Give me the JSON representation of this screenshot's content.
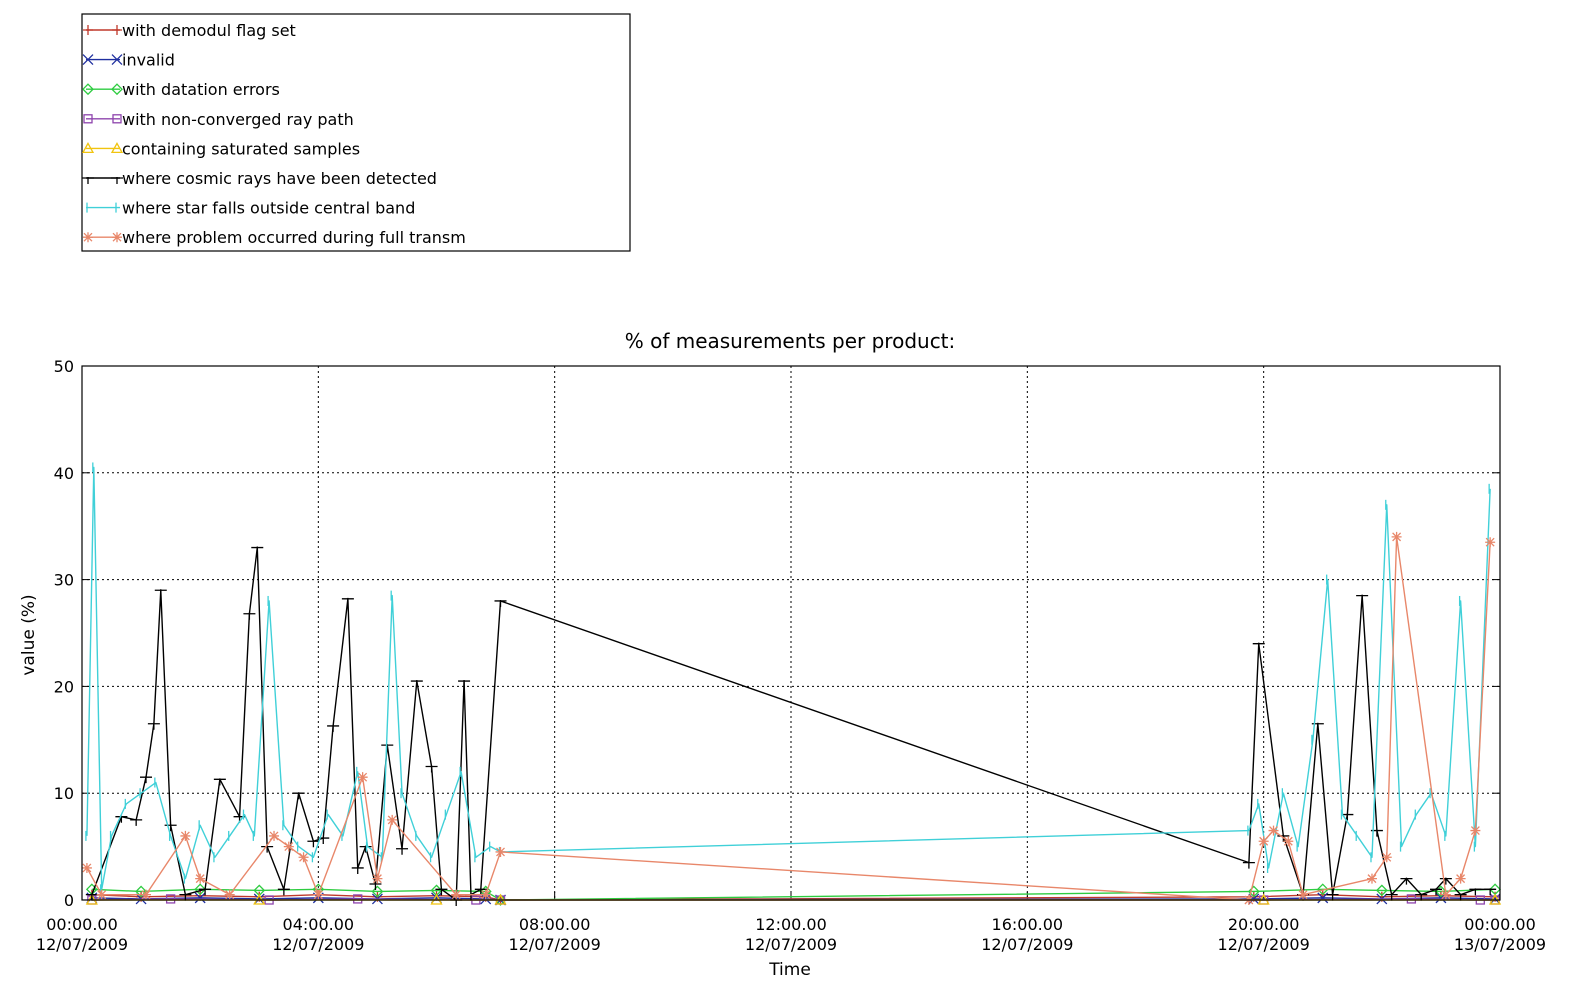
{
  "chart_data": {
    "type": "line",
    "title": "% of measurements per product:",
    "xlabel": "Time",
    "ylabel": "value (%)",
    "xlim": [
      "2009-07-12 00:00",
      "2009-07-13 00:00"
    ],
    "ylim": [
      0,
      50
    ],
    "yticks": [
      0,
      10,
      20,
      30,
      40,
      50
    ],
    "xticks": [
      {
        "time": "2009-07-12 00:00",
        "label_time": "00:00.00",
        "label_date": "12/07/2009"
      },
      {
        "time": "2009-07-12 04:00",
        "label_time": "04:00.00",
        "label_date": "12/07/2009"
      },
      {
        "time": "2009-07-12 08:00",
        "label_time": "08:00.00",
        "label_date": "12/07/2009"
      },
      {
        "time": "2009-07-12 12:00",
        "label_time": "12:00.00",
        "label_date": "12/07/2009"
      },
      {
        "time": "2009-07-12 16:00",
        "label_time": "16:00.00",
        "label_date": "12/07/2009"
      },
      {
        "time": "2009-07-12 20:00",
        "label_time": "20:00.00",
        "label_date": "12/07/2009"
      },
      {
        "time": "2009-07-13 00:00",
        "label_time": "00:00.00",
        "label_date": "13/07/2009"
      }
    ],
    "grid": true,
    "legend_position": "top-left",
    "series": [
      {
        "name": "with demodul flag set",
        "color": "#c0392b",
        "marker": "plus",
        "x": [
          "2009-07-12 00:10",
          "2009-07-12 01:00",
          "2009-07-12 02:00",
          "2009-07-12 03:00",
          "2009-07-12 04:00",
          "2009-07-12 05:00",
          "2009-07-12 06:00",
          "2009-07-12 06:50",
          "2009-07-12 07:05",
          "2009-07-12 19:50",
          "2009-07-12 21:00",
          "2009-07-12 22:00",
          "2009-07-12 23:00",
          "2009-07-12 23:55"
        ],
        "y": [
          0.5,
          0.3,
          0.4,
          0.3,
          0.5,
          0.3,
          0.4,
          0.3,
          0,
          0.3,
          0.5,
          0.3,
          0.4,
          0.3
        ]
      },
      {
        "name": "invalid",
        "color": "#1f2f9f",
        "marker": "x",
        "x": [
          "2009-07-12 00:10",
          "2009-07-12 01:00",
          "2009-07-12 02:00",
          "2009-07-12 03:00",
          "2009-07-12 04:00",
          "2009-07-12 05:00",
          "2009-07-12 06:00",
          "2009-07-12 06:50",
          "2009-07-12 07:05",
          "2009-07-12 19:50",
          "2009-07-12 21:00",
          "2009-07-12 22:00",
          "2009-07-12 23:00",
          "2009-07-12 23:55"
        ],
        "y": [
          0.2,
          0.1,
          0.2,
          0.1,
          0.2,
          0.1,
          0.2,
          0.1,
          0,
          0.1,
          0.2,
          0.1,
          0.2,
          0.1
        ]
      },
      {
        "name": "with datation errors",
        "color": "#2ecc40",
        "marker": "diamond",
        "x": [
          "2009-07-12 00:10",
          "2009-07-12 01:00",
          "2009-07-12 02:00",
          "2009-07-12 03:00",
          "2009-07-12 04:00",
          "2009-07-12 05:00",
          "2009-07-12 06:00",
          "2009-07-12 06:50",
          "2009-07-12 07:05",
          "2009-07-12 19:50",
          "2009-07-12 21:00",
          "2009-07-12 22:00",
          "2009-07-12 23:00",
          "2009-07-12 23:55"
        ],
        "y": [
          1.0,
          0.8,
          1.0,
          0.9,
          1.0,
          0.8,
          0.9,
          0.8,
          0,
          0.8,
          1.0,
          0.9,
          0.8,
          1.0
        ]
      },
      {
        "name": "with non-converged ray path",
        "color": "#8e44ad",
        "marker": "square",
        "x": [
          "2009-07-12 00:10",
          "2009-07-12 01:30",
          "2009-07-12 03:10",
          "2009-07-12 04:40",
          "2009-07-12 06:40",
          "2009-07-12 07:05",
          "2009-07-12 20:00",
          "2009-07-12 22:30",
          "2009-07-12 23:40",
          "2009-07-12 23:55"
        ],
        "y": [
          0,
          0.1,
          0,
          0.1,
          0,
          0,
          0,
          0.1,
          0,
          0
        ]
      },
      {
        "name": "containing saturated samples",
        "color": "#f1c40f",
        "marker": "triangle",
        "x": [
          "2009-07-12 00:10",
          "2009-07-12 03:00",
          "2009-07-12 06:00",
          "2009-07-12 07:05",
          "2009-07-12 20:00",
          "2009-07-12 23:55"
        ],
        "y": [
          0,
          0,
          0,
          0,
          0,
          0
        ]
      },
      {
        "name": "where cosmic rays have been detected",
        "color": "#000000",
        "marker": "hbar",
        "x": [
          "2009-07-12 00:10",
          "2009-07-12 00:40",
          "2009-07-12 00:55",
          "2009-07-12 01:05",
          "2009-07-12 01:13",
          "2009-07-12 01:20",
          "2009-07-12 01:30",
          "2009-07-12 01:45",
          "2009-07-12 02:05",
          "2009-07-12 02:20",
          "2009-07-12 02:40",
          "2009-07-12 02:50",
          "2009-07-12 02:58",
          "2009-07-12 03:08",
          "2009-07-12 03:25",
          "2009-07-12 03:40",
          "2009-07-12 03:55",
          "2009-07-12 04:05",
          "2009-07-12 04:15",
          "2009-07-12 04:30",
          "2009-07-12 04:40",
          "2009-07-12 04:48",
          "2009-07-12 04:58",
          "2009-07-12 05:10",
          "2009-07-12 05:25",
          "2009-07-12 05:40",
          "2009-07-12 05:55",
          "2009-07-12 06:05",
          "2009-07-12 06:20",
          "2009-07-12 06:28",
          "2009-07-12 06:35",
          "2009-07-12 06:45",
          "2009-07-12 07:05",
          "2009-07-12 19:45",
          "2009-07-12 19:55",
          "2009-07-12 20:20",
          "2009-07-12 20:40",
          "2009-07-12 20:55",
          "2009-07-12 21:10",
          "2009-07-12 21:25",
          "2009-07-12 21:40",
          "2009-07-12 21:55",
          "2009-07-12 22:10",
          "2009-07-12 22:25",
          "2009-07-12 22:40",
          "2009-07-12 22:55",
          "2009-07-12 23:05",
          "2009-07-12 23:20",
          "2009-07-12 23:35",
          "2009-07-12 23:50"
        ],
        "y": [
          0.5,
          7.8,
          7.5,
          11.5,
          16.5,
          29,
          7,
          0.5,
          1,
          11.3,
          7.8,
          26.8,
          33,
          5,
          1,
          10,
          5.5,
          5.8,
          16.3,
          28.2,
          3,
          5,
          1.5,
          14.5,
          4.8,
          20.5,
          12.5,
          1,
          0,
          20.5,
          0.5,
          1,
          28,
          3.5,
          24,
          6,
          0.5,
          16.5,
          0.5,
          8,
          28.5,
          6.5,
          0.5,
          2,
          0.5,
          1,
          2,
          0.5,
          1,
          1
        ]
      },
      {
        "name": "where star falls outside central band",
        "color": "#40d0d8",
        "marker": "vbar",
        "x": [
          "2009-07-12 00:05",
          "2009-07-12 00:12",
          "2009-07-12 00:20",
          "2009-07-12 00:30",
          "2009-07-12 00:45",
          "2009-07-12 01:00",
          "2009-07-12 01:15",
          "2009-07-12 01:30",
          "2009-07-12 01:45",
          "2009-07-12 02:00",
          "2009-07-12 02:15",
          "2009-07-12 02:30",
          "2009-07-12 02:45",
          "2009-07-12 02:55",
          "2009-07-12 03:10",
          "2009-07-12 03:25",
          "2009-07-12 03:40",
          "2009-07-12 03:55",
          "2009-07-12 04:10",
          "2009-07-12 04:25",
          "2009-07-12 04:40",
          "2009-07-12 04:50",
          "2009-07-12 05:05",
          "2009-07-12 05:15",
          "2009-07-12 05:25",
          "2009-07-12 05:40",
          "2009-07-12 05:55",
          "2009-07-12 06:10",
          "2009-07-12 06:25",
          "2009-07-12 06:40",
          "2009-07-12 06:55",
          "2009-07-12 07:05",
          "2009-07-12 19:45",
          "2009-07-12 19:55",
          "2009-07-12 20:05",
          "2009-07-12 20:20",
          "2009-07-12 20:35",
          "2009-07-12 20:50",
          "2009-07-12 21:05",
          "2009-07-12 21:20",
          "2009-07-12 21:35",
          "2009-07-12 21:50",
          "2009-07-12 22:05",
          "2009-07-12 22:20",
          "2009-07-12 22:35",
          "2009-07-12 22:50",
          "2009-07-12 23:05",
          "2009-07-12 23:20",
          "2009-07-12 23:35",
          "2009-07-12 23:50"
        ],
        "y": [
          6,
          40.5,
          1,
          6,
          9,
          10,
          11,
          6,
          2,
          7,
          4,
          6,
          8,
          6,
          28,
          7,
          5,
          4,
          8,
          6,
          12,
          5,
          4,
          28.5,
          10,
          6,
          4,
          8,
          12,
          4,
          5,
          4.5,
          6.5,
          9,
          3,
          10,
          5,
          15,
          30,
          8,
          6,
          4,
          37,
          5,
          8,
          10,
          6,
          28,
          5,
          38.5
        ]
      },
      {
        "name": "where problem occurred during full transm",
        "color": "#e8876a",
        "marker": "asterisk",
        "x": [
          "2009-07-12 00:05",
          "2009-07-12 00:20",
          "2009-07-12 01:05",
          "2009-07-12 01:45",
          "2009-07-12 02:00",
          "2009-07-12 02:30",
          "2009-07-12 03:15",
          "2009-07-12 03:30",
          "2009-07-12 03:45",
          "2009-07-12 04:00",
          "2009-07-12 04:45",
          "2009-07-12 05:00",
          "2009-07-12 05:15",
          "2009-07-12 06:20",
          "2009-07-12 06:50",
          "2009-07-12 07:05",
          "2009-07-12 19:45",
          "2009-07-12 20:00",
          "2009-07-12 20:10",
          "2009-07-12 20:25",
          "2009-07-12 20:40",
          "2009-07-12 21:50",
          "2009-07-12 22:05",
          "2009-07-12 22:15",
          "2009-07-12 23:05",
          "2009-07-12 23:20",
          "2009-07-12 23:35",
          "2009-07-12 23:50"
        ],
        "y": [
          3,
          0.5,
          0.5,
          6,
          2,
          0.5,
          6,
          5,
          4,
          0.5,
          11.5,
          2,
          7.5,
          0.5,
          0.5,
          4.5,
          0,
          5.5,
          6.5,
          5.5,
          0.5,
          2,
          4,
          34,
          0.5,
          2,
          6.5,
          33.5
        ]
      }
    ]
  }
}
